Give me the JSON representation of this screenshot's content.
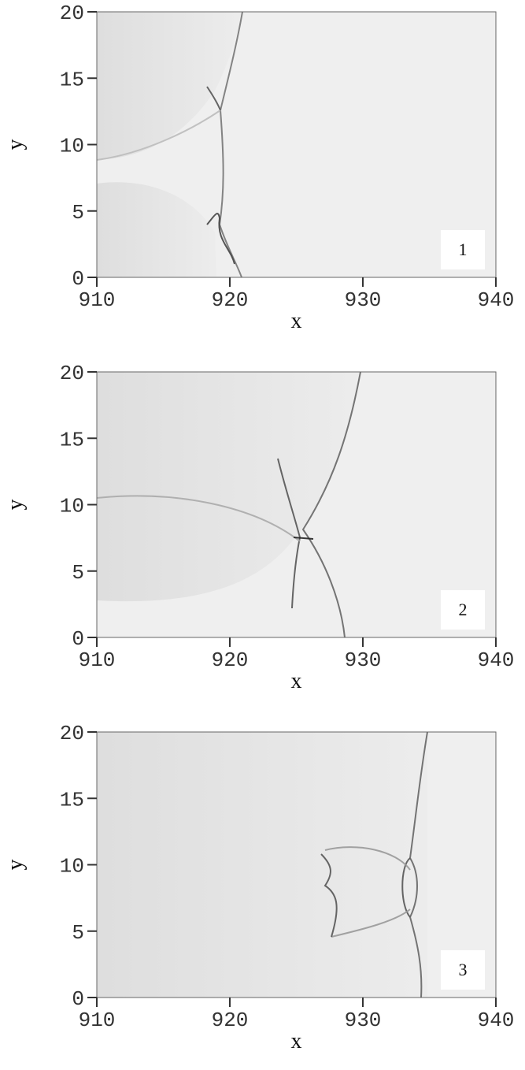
{
  "chart_data": [
    {
      "type": "image",
      "xlabel": "x",
      "ylabel": "y",
      "xlim": [
        910,
        940
      ],
      "ylim": [
        0,
        20
      ],
      "xticks": [
        910,
        920,
        930,
        940
      ],
      "yticks": [
        0,
        5,
        10,
        15,
        20
      ],
      "panel_label": "1"
    },
    {
      "type": "image",
      "xlabel": "x",
      "ylabel": "y",
      "xlim": [
        910,
        940
      ],
      "ylim": [
        0,
        20
      ],
      "xticks": [
        910,
        920,
        930,
        940
      ],
      "yticks": [
        0,
        5,
        10,
        15,
        20
      ],
      "panel_label": "2"
    },
    {
      "type": "image",
      "xlabel": "x",
      "ylabel": "y",
      "xlim": [
        910,
        940
      ],
      "ylim": [
        0,
        20
      ],
      "xticks": [
        910,
        920,
        930,
        940
      ],
      "yticks": [
        0,
        5,
        10,
        15,
        20
      ],
      "panel_label": "3"
    }
  ]
}
